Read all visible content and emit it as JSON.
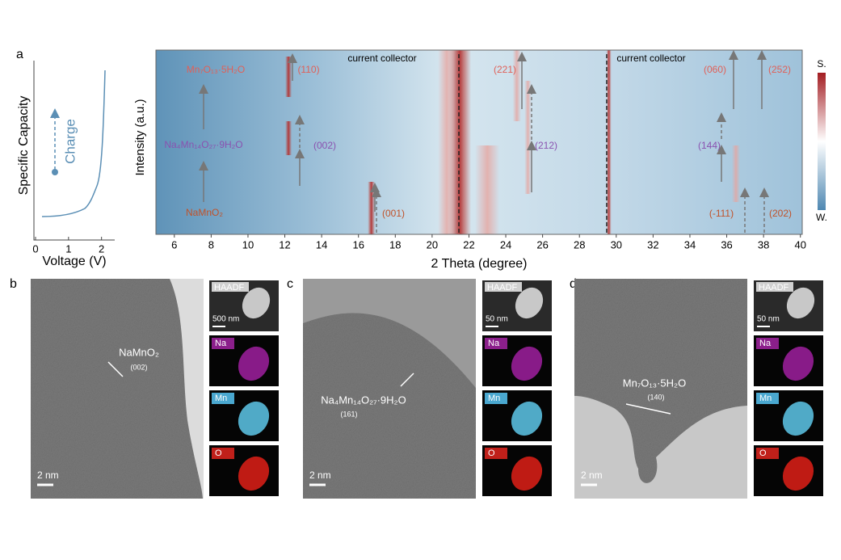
{
  "panel_a": {
    "label": "a",
    "ylabel": "Specific Capacity",
    "xlabel": "Voltage (V)",
    "xticks": [
      0,
      1,
      2
    ],
    "xlim": [
      0,
      2.4
    ],
    "arrow_label": "Charge"
  },
  "heatmap": {
    "ylabel": "Intensity (a.u.)",
    "xlabel": "2 Theta (degree)",
    "xticks": [
      6,
      8,
      10,
      12,
      14,
      16,
      18,
      20,
      22,
      24,
      26,
      28,
      30,
      32,
      34,
      36,
      38,
      40
    ],
    "xlim": [
      5,
      40.1
    ],
    "annotations": [
      "current collector",
      "current collector"
    ],
    "phases": [
      "Mn₇O₁₃·5H₂O",
      "Na₄Mn₁₄O₂₇·9H₂O",
      "NaMnO₂"
    ],
    "peaks": [
      "(110)",
      "(221)",
      "(060)",
      "(252)",
      "(002)",
      "(212)",
      "(144)",
      "(001)",
      "(-111)",
      "(202)"
    ],
    "colorbar": {
      "top": "S.",
      "bottom": "W."
    }
  },
  "panels": [
    {
      "label": "b",
      "phase": "NaMnO₂",
      "plane": "(002)",
      "scale": "2 nm",
      "eds": {
        "haadf": "HAADF",
        "scale": "500 nm",
        "maps": [
          "Na",
          "Mn",
          "O"
        ]
      }
    },
    {
      "label": "c",
      "phase": "Na₄Mn₁₄O₂₇·9H₂O",
      "plane": "(161)",
      "scale": "2 nm",
      "eds": {
        "haadf": "HAADF",
        "scale": "50 nm",
        "maps": [
          "Na",
          "Mn",
          "O"
        ]
      }
    },
    {
      "label": "d",
      "phase": "Mn₇O₁₃·5H₂O",
      "plane": "(140)",
      "scale": "2 nm",
      "eds": {
        "haadf": "HAADF",
        "scale": "50 nm",
        "maps": [
          "Na",
          "Mn",
          "O"
        ]
      }
    }
  ]
}
